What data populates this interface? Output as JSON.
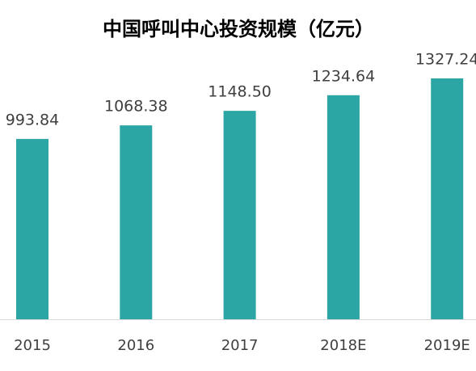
{
  "chart_data": {
    "type": "bar",
    "title": "中国呼叫中心投资规模（亿元）",
    "categories": [
      "2015",
      "2016",
      "2017",
      "2018E",
      "2019E"
    ],
    "values": [
      993.84,
      1068.38,
      1148.5,
      1234.64,
      1327.24
    ],
    "value_labels": [
      "993.84",
      "1068.38",
      "1148.50",
      "1234.64",
      "1327.24"
    ],
    "color": "#2ca6a4"
  }
}
